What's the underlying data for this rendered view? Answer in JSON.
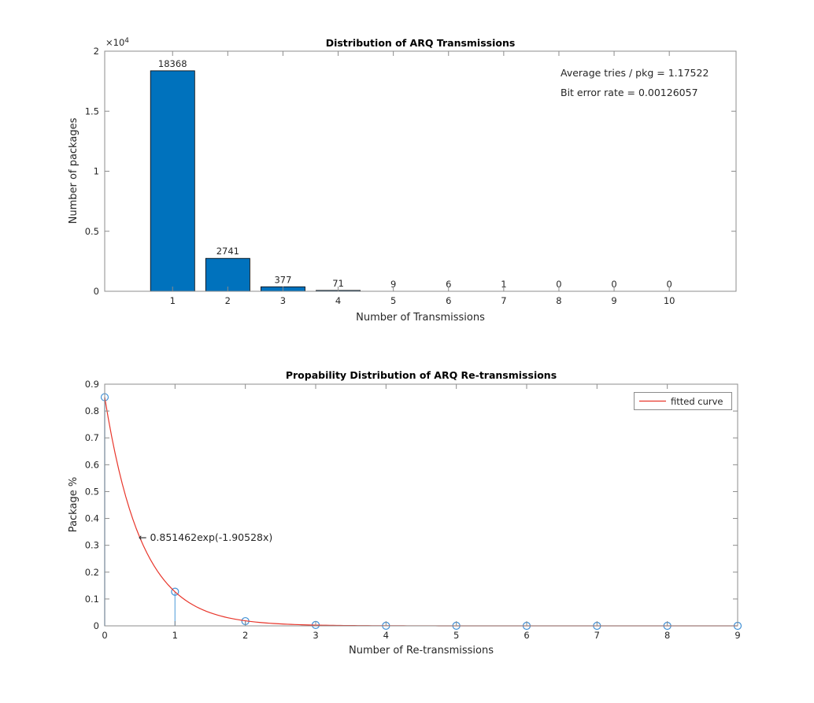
{
  "colors": {
    "axis": "#8c8c8c",
    "text": "#262626",
    "background": "#ffffff",
    "bar_fill": "#0072bd",
    "bar_edge": "#000000",
    "stem": "#7cb5e3",
    "marker": "#4191d6",
    "curve_red": "#e8352a"
  },
  "chart_data": [
    {
      "type": "bar",
      "title": "Distribution of ARQ Transmissions",
      "xlabel": "Number of Transmissions",
      "ylabel": "Number of packages",
      "categories": [
        1,
        2,
        3,
        4,
        5,
        6,
        7,
        8,
        9,
        10
      ],
      "values": [
        18368,
        2741,
        377,
        71,
        9,
        6,
        1,
        0,
        0,
        0
      ],
      "bar_value_labels": [
        "18368",
        "2741",
        "377",
        "71",
        "9",
        "6",
        "1",
        "0",
        "0",
        "0"
      ],
      "bar_width": 0.8,
      "xlim": [
        -0.23,
        11.21
      ],
      "ylim": [
        0,
        20000
      ],
      "xticks": [
        1,
        2,
        3,
        4,
        5,
        6,
        7,
        8,
        9,
        10
      ],
      "xtick_labels": [
        "1",
        "2",
        "3",
        "4",
        "5",
        "6",
        "7",
        "8",
        "9",
        "10"
      ],
      "yticks": [
        0,
        5000,
        10000,
        15000,
        20000
      ],
      "ytick_labels": [
        "0",
        "0.5",
        "1",
        "1.5",
        "2"
      ],
      "y_scale_label": {
        "prefix": "×10",
        "exponent": "4"
      },
      "grid": false,
      "legend": null,
      "annotations": [
        {
          "text": "Average tries / pkg = 1.17522"
        },
        {
          "text": "Bit error rate = 0.00126057"
        }
      ]
    },
    {
      "type": "stem",
      "title": "Propability Distribution of ARQ Re-transmissions",
      "xlabel": "Number of Re-transmissions",
      "ylabel": "Package %",
      "x": [
        0,
        1,
        2,
        3,
        4,
        5,
        6,
        7,
        8,
        9
      ],
      "values": [
        0.851444,
        0.127057,
        0.017476,
        0.003291,
        0.000417,
        0.000278,
        4.64e-05,
        0,
        0,
        0
      ],
      "xlim": [
        0,
        9
      ],
      "ylim": [
        0,
        0.9
      ],
      "xticks": [
        0,
        1,
        2,
        3,
        4,
        5,
        6,
        7,
        8,
        9
      ],
      "xtick_labels": [
        "0",
        "1",
        "2",
        "3",
        "4",
        "5",
        "6",
        "7",
        "8",
        "9"
      ],
      "yticks": [
        0,
        0.1,
        0.2,
        0.3,
        0.4,
        0.5,
        0.6,
        0.7,
        0.8,
        0.9
      ],
      "ytick_labels": [
        "0",
        "0.1",
        "0.2",
        "0.3",
        "0.4",
        "0.5",
        "0.6",
        "0.7",
        "0.8",
        "0.9"
      ],
      "grid": false,
      "fitted_curve": {
        "a": 0.851462,
        "b": -1.90528
      },
      "legend": {
        "label": "fitted curve",
        "position": "top-right"
      },
      "annotation": {
        "text": "← 0.851462exp(-1.90528x)"
      }
    }
  ]
}
